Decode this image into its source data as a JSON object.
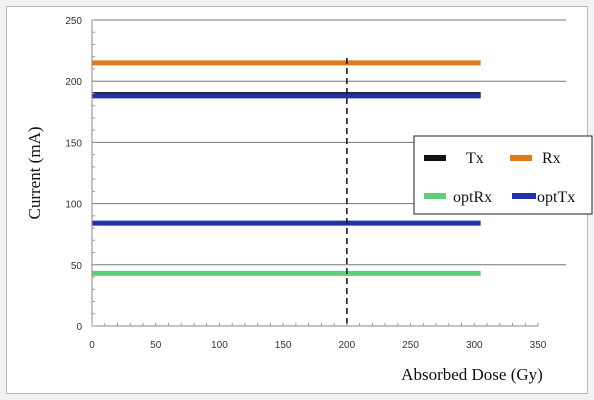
{
  "chart_data": {
    "type": "line",
    "title": "",
    "xlabel": "Absorbed Dose (Gy)",
    "ylabel": "Current (mA)",
    "xlim": [
      0,
      350
    ],
    "ylim": [
      0,
      250
    ],
    "xticks": [
      0,
      50,
      100,
      150,
      200,
      250,
      300,
      350
    ],
    "yticks": [
      0,
      50,
      100,
      150,
      200,
      250
    ],
    "grid": "horizontal",
    "legend_position": "right",
    "marker_line": {
      "x": 200,
      "style": "dashed"
    },
    "series": [
      {
        "name": "Tx",
        "color": "#111111",
        "x": [
          0,
          305
        ],
        "values": [
          189,
          189
        ]
      },
      {
        "name": "Rx",
        "color": "#e07b1a",
        "x": [
          0,
          305
        ],
        "values": [
          215,
          215
        ]
      },
      {
        "name": "optRx",
        "color": "#5ccf78",
        "x": [
          0,
          305
        ],
        "values": [
          43,
          43
        ]
      },
      {
        "name": "optTx",
        "color": "#2233aa",
        "x": [
          0,
          305
        ],
        "values": [
          84,
          84
        ]
      },
      {
        "name": "optTx",
        "color": "#2233aa",
        "x": [
          0,
          305
        ],
        "values": [
          188,
          188
        ]
      }
    ],
    "legend": [
      {
        "label": "Tx",
        "color": "#111111"
      },
      {
        "label": "Rx",
        "color": "#e07b1a"
      },
      {
        "label": "optRx",
        "color": "#5ccf78"
      },
      {
        "label": "optTx",
        "color": "#2233aa"
      }
    ]
  }
}
